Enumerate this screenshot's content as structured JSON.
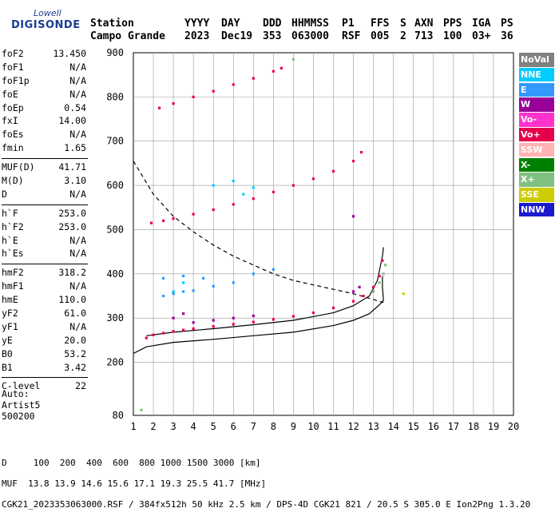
{
  "logo": {
    "line1": "Lowell",
    "line2": "DIGISONDE"
  },
  "header": {
    "row1": [
      "Station",
      "YYYY",
      "DAY",
      "DDD",
      "HHMMSS",
      "P1",
      "FFS",
      "S",
      "AXN",
      "PPS",
      "IGA",
      "PS"
    ],
    "row2": [
      "Campo Grande",
      "2023",
      "Dec19",
      "353",
      "063000",
      "RSF",
      "005",
      "2",
      "713",
      "100",
      "03+",
      "36"
    ]
  },
  "params": {
    "group1": [
      {
        "k": "foF2",
        "v": "13.450"
      },
      {
        "k": "foF1",
        "v": "N/A"
      },
      {
        "k": "foF1p",
        "v": "N/A"
      },
      {
        "k": "foE",
        "v": "N/A"
      },
      {
        "k": "foEp",
        "v": "0.54"
      },
      {
        "k": "fxI",
        "v": "14.00"
      },
      {
        "k": "foEs",
        "v": "N/A"
      },
      {
        "k": "fmin",
        "v": "1.65"
      }
    ],
    "group2": [
      {
        "k": "MUF(D)",
        "v": "41.71"
      },
      {
        "k": "M(D)",
        "v": "3.10"
      },
      {
        "k": "D",
        "v": "N/A"
      }
    ],
    "group3": [
      {
        "k": "h`F",
        "v": "253.0"
      },
      {
        "k": "h`F2",
        "v": "253.0"
      },
      {
        "k": "h`E",
        "v": "N/A"
      },
      {
        "k": "h`Es",
        "v": "N/A"
      }
    ],
    "group4": [
      {
        "k": "hmF2",
        "v": "318.2"
      },
      {
        "k": "hmF1",
        "v": "N/A"
      },
      {
        "k": "hmE",
        "v": "110.0"
      },
      {
        "k": "yF2",
        "v": "61.0"
      },
      {
        "k": "yF1",
        "v": "N/A"
      },
      {
        "k": "yE",
        "v": "20.0"
      },
      {
        "k": "B0",
        "v": "53.2"
      },
      {
        "k": "B1",
        "v": "3.42"
      }
    ],
    "group5": [
      {
        "k": "C-level",
        "v": "22"
      }
    ]
  },
  "auto": {
    "line1": "Auto:",
    "line2": "Artist5",
    "line3": "500200"
  },
  "legend": [
    {
      "label": "NoVal",
      "color": "#808080",
      "text": "#ffffff"
    },
    {
      "label": "NNE",
      "color": "#00ccff",
      "text": "#ffffff"
    },
    {
      "label": "E",
      "color": "#3399ff",
      "text": "#ffffff"
    },
    {
      "label": "W",
      "color": "#990099",
      "text": "#ffffff"
    },
    {
      "label": "Vo-",
      "color": "#ff33cc",
      "text": "#ffffff"
    },
    {
      "label": "Vo+",
      "color": "#e6004c",
      "text": "#ffffff"
    },
    {
      "label": "SSW",
      "color": "#ffb3b3",
      "text": "#ffffff"
    },
    {
      "label": "X-",
      "color": "#008000",
      "text": "#ffffff"
    },
    {
      "label": "X+",
      "color": "#80c080",
      "text": "#ffffff"
    },
    {
      "label": "SSE",
      "color": "#cccc00",
      "text": "#ffffff"
    },
    {
      "label": "NNW",
      "color": "#1a1acc",
      "text": "#ffffff"
    }
  ],
  "footer": {
    "line1": "D     100  200  400  600  800 1000 1500 3000 [km]",
    "line2": "MUF  13.8 13.9 14.6 15.6 17.1 19.3 25.5 41.7 [MHz]",
    "line3": "CGK21_2023353063000.RSF / 384fx512h 50 kHz 2.5 km / DPS-4D CGK21 821 / 20.5 S 305.0 E Ion2Png 1.3.20"
  },
  "chart_data": {
    "type": "scatter",
    "title": "",
    "xlabel": "",
    "ylabel": "",
    "xlim": [
      1,
      20
    ],
    "ylim": [
      80,
      900
    ],
    "x_ticks": [
      1,
      2,
      3,
      4,
      5,
      6,
      7,
      8,
      9,
      10,
      11,
      12,
      13,
      14,
      15,
      16,
      17,
      18,
      19,
      20
    ],
    "y_ticks": [
      80,
      200,
      300,
      400,
      500,
      600,
      700,
      800,
      900
    ],
    "grid": true,
    "legend_position": "right",
    "series": [
      {
        "name": "Vo+",
        "color": "#e6004c",
        "type": "scatter",
        "points": [
          [
            1.65,
            255
          ],
          [
            2,
            262
          ],
          [
            2.5,
            266
          ],
          [
            3,
            270
          ],
          [
            3.5,
            273
          ],
          [
            4,
            276
          ],
          [
            5,
            281
          ],
          [
            6,
            286
          ],
          [
            7,
            291
          ],
          [
            8,
            297
          ],
          [
            9,
            304
          ],
          [
            10,
            312
          ],
          [
            11,
            323
          ],
          [
            12,
            338
          ],
          [
            12.5,
            350
          ],
          [
            13,
            370
          ],
          [
            13.3,
            395
          ],
          [
            13.45,
            430
          ]
        ]
      },
      {
        "name": "Vo+ (2nd hop)",
        "color": "#e6004c",
        "type": "scatter",
        "points": [
          [
            1.9,
            515
          ],
          [
            2.5,
            520
          ],
          [
            3,
            525
          ],
          [
            4,
            535
          ],
          [
            5,
            545
          ],
          [
            6,
            557
          ],
          [
            7,
            570
          ],
          [
            8,
            585
          ],
          [
            9,
            600
          ],
          [
            10,
            615
          ],
          [
            11,
            632
          ],
          [
            12,
            655
          ],
          [
            12.4,
            675
          ]
        ]
      },
      {
        "name": "Vo+ (3rd hop)",
        "color": "#e6004c",
        "type": "scatter",
        "points": [
          [
            2.3,
            775
          ],
          [
            3,
            785
          ],
          [
            4,
            800
          ],
          [
            5,
            813
          ],
          [
            6,
            828
          ],
          [
            7,
            842
          ],
          [
            8,
            858
          ],
          [
            8.4,
            865
          ]
        ]
      },
      {
        "name": "E",
        "color": "#3399ff",
        "type": "scatter",
        "points": [
          [
            2.5,
            350
          ],
          [
            3,
            355
          ],
          [
            3.5,
            360
          ],
          [
            4,
            362
          ],
          [
            5,
            372
          ],
          [
            6,
            380
          ],
          [
            7,
            400
          ],
          [
            8,
            410
          ],
          [
            2.5,
            390
          ],
          [
            3.5,
            395
          ],
          [
            4.5,
            390
          ]
        ]
      },
      {
        "name": "NNE",
        "color": "#00ccff",
        "type": "scatter",
        "points": [
          [
            3,
            360
          ],
          [
            3.5,
            380
          ],
          [
            5,
            600
          ],
          [
            6,
            610
          ],
          [
            7,
            595
          ],
          [
            6.5,
            580
          ]
        ]
      },
      {
        "name": "W",
        "color": "#990099",
        "type": "scatter",
        "points": [
          [
            3,
            300
          ],
          [
            3.5,
            310
          ],
          [
            4,
            290
          ],
          [
            5,
            295
          ],
          [
            6,
            300
          ],
          [
            7,
            305
          ],
          [
            12,
            360
          ],
          [
            12.3,
            370
          ],
          [
            12,
            530
          ]
        ]
      },
      {
        "name": "X+",
        "color": "#80c080",
        "type": "scatter",
        "points": [
          [
            13,
            360
          ],
          [
            13.3,
            380
          ],
          [
            13.5,
            400
          ],
          [
            13.6,
            420
          ],
          [
            1.4,
            92
          ],
          [
            9,
            885
          ]
        ]
      },
      {
        "name": "SSE",
        "color": "#cccc00",
        "type": "scatter",
        "points": [
          [
            14.5,
            355
          ]
        ]
      }
    ],
    "curves": [
      {
        "name": "model_solid",
        "style": "solid",
        "points": [
          [
            1,
            220
          ],
          [
            1.65,
            235
          ],
          [
            3,
            245
          ],
          [
            5,
            252
          ],
          [
            7,
            260
          ],
          [
            9,
            268
          ],
          [
            11,
            283
          ],
          [
            12,
            295
          ],
          [
            12.8,
            310
          ],
          [
            13.3,
            330
          ],
          [
            13.5,
            340
          ],
          [
            13.45,
            370
          ],
          [
            13.45,
            395
          ]
        ]
      },
      {
        "name": "model_h",
        "style": "solid",
        "points": [
          [
            1.65,
            260
          ],
          [
            3,
            268
          ],
          [
            5,
            276
          ],
          [
            7,
            285
          ],
          [
            9,
            295
          ],
          [
            11,
            312
          ],
          [
            12,
            328
          ],
          [
            12.8,
            350
          ],
          [
            13.2,
            385
          ],
          [
            13.45,
            440
          ],
          [
            13.5,
            460
          ]
        ]
      },
      {
        "name": "muf_dashed",
        "style": "dashed",
        "points": [
          [
            1,
            655
          ],
          [
            2,
            580
          ],
          [
            3,
            530
          ],
          [
            4,
            495
          ],
          [
            5,
            465
          ],
          [
            6,
            440
          ],
          [
            7,
            420
          ],
          [
            8,
            400
          ],
          [
            9,
            385
          ],
          [
            10,
            375
          ],
          [
            11,
            365
          ],
          [
            12,
            355
          ],
          [
            13,
            342
          ],
          [
            13.5,
            335
          ]
        ]
      }
    ]
  }
}
